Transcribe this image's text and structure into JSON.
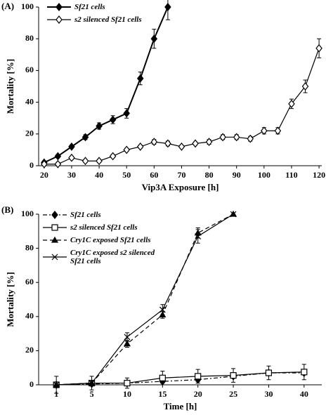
{
  "chart_data": [
    {
      "type": "line",
      "panel": "(A)",
      "xlabel": "Vip3A Exposure [h]",
      "ylabel": "Mortality [%]",
      "xlim": [
        18,
        121
      ],
      "xticks": [
        20,
        30,
        40,
        50,
        60,
        70,
        80,
        90,
        100,
        110,
        120
      ],
      "ylim": [
        0,
        100
      ],
      "yticks": [
        0,
        20,
        40,
        60,
        80,
        100
      ],
      "legend": "upper left",
      "series": [
        {
          "name": "Sf21 cells",
          "color": "#000000",
          "marker": "diamond-filled",
          "line_style": "solid",
          "x": [
            20,
            25,
            30,
            35,
            40,
            45,
            50,
            55,
            60,
            65
          ],
          "values": [
            2,
            6,
            12,
            18,
            25,
            29,
            33,
            55,
            80,
            100
          ],
          "errors": [
            1,
            1,
            1,
            1.5,
            2,
            2.5,
            3,
            4,
            6,
            8
          ]
        },
        {
          "name": "s2 silenced Sf21 cells",
          "color": "#000000",
          "marker": "diamond-open",
          "line_style": "solid",
          "x": [
            20,
            25,
            30,
            35,
            40,
            45,
            50,
            55,
            60,
            65,
            70,
            75,
            80,
            85,
            90,
            95,
            100,
            105,
            110,
            115,
            120
          ],
          "values": [
            1,
            1,
            5,
            3,
            3,
            6,
            10,
            12,
            15,
            14,
            12,
            14,
            15,
            18,
            18,
            17,
            22,
            22,
            39,
            50,
            74
          ],
          "errors": [
            1,
            1,
            1,
            1,
            1,
            1,
            1,
            1,
            1.5,
            1.5,
            1,
            1,
            1.5,
            1.5,
            1.5,
            1.5,
            2,
            2,
            3,
            4,
            6
          ]
        }
      ]
    },
    {
      "type": "line",
      "panel": "(B)",
      "xlabel": "Time [h]",
      "ylabel": "Mortality [%]",
      "categories": [
        "1",
        "5",
        "10",
        "15",
        "20",
        "25",
        "30",
        "40"
      ],
      "ylim": [
        0,
        100
      ],
      "yticks": [
        0,
        20,
        40,
        60,
        80,
        100
      ],
      "legend": "upper left",
      "series": [
        {
          "name": "Sf21 cells",
          "color": "#000000",
          "marker": "diamond-filled",
          "line_style": "dash-dot",
          "values": [
            0,
            0.5,
            1,
            2,
            3,
            5,
            7,
            7
          ],
          "errors": [
            0,
            1,
            1,
            1,
            1,
            1,
            1,
            1
          ]
        },
        {
          "name": "s2 silenced Sf21 cells",
          "color": "#000000",
          "marker": "square-open",
          "line_style": "solid",
          "values": [
            0,
            1,
            1,
            4,
            5,
            5.5,
            7,
            7.5
          ],
          "errors": [
            5,
            4,
            3,
            4,
            4,
            4,
            4,
            4.5
          ]
        },
        {
          "name": "Cry1C exposed Sf21 cells",
          "color": "#000000",
          "marker": "triangle-filled",
          "line_style": "dashed",
          "values": [
            0,
            1,
            24,
            41,
            89,
            100,
            null,
            null
          ],
          "errors": [
            0,
            1,
            2,
            2,
            3,
            0,
            null,
            null
          ]
        },
        {
          "name": "Cry1C exposed s2 silenced Sf21 cells",
          "color": "#000000",
          "marker": "cross",
          "line_style": "solid",
          "values": [
            0,
            1,
            28,
            44,
            87,
            100,
            null,
            null
          ],
          "errors": [
            0,
            1,
            2.5,
            3,
            4,
            0,
            null,
            null
          ]
        }
      ]
    }
  ]
}
